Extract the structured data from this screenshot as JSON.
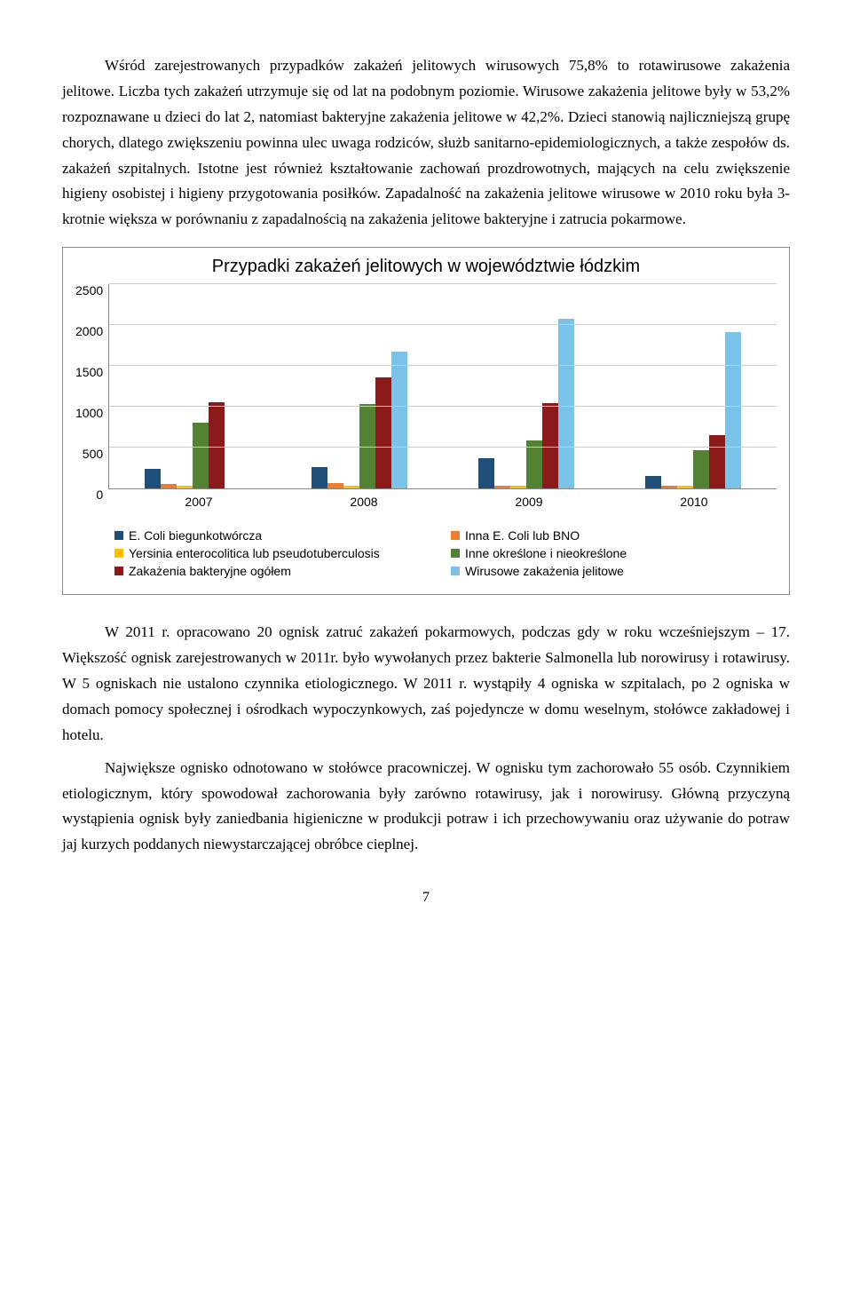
{
  "paragraphs": {
    "p1": "Wśród zarejestrowanych przypadków zakażeń jelitowych wirusowych 75,8% to rotawirusowe zakażenia jelitowe. Liczba tych zakażeń utrzymuje się od lat na podobnym poziomie. Wirusowe zakażenia jelitowe były w 53,2% rozpoznawane u dzieci do lat 2, natomiast bakteryjne zakażenia jelitowe w 42,2%. Dzieci stanowią najliczniejszą grupę chorych, dlatego zwiększeniu powinna ulec uwaga rodziców, służb sanitarno-epidemiologicznych, a także zespołów ds. zakażeń szpitalnych. Istotne jest również kształtowanie zachowań prozdrowotnych, mających na celu zwiększenie higieny osobistej i higieny przygotowania posiłków. Zapadalność na zakażenia jelitowe wirusowe w 2010 roku była 3-krotnie większa w porównaniu z zapadalnością na zakażenia jelitowe bakteryjne i zatrucia pokarmowe.",
    "p2": "W 2011 r. opracowano 20 ognisk zatruć zakażeń pokarmowych, podczas gdy w roku wcześniejszym – 17. Większość ognisk zarejestrowanych w 2011r. było wywołanych przez bakterie Salmonella lub norowirusy i rotawirusy. W 5 ogniskach nie ustalono czynnika etiologicznego. W 2011 r. wystąpiły 4 ogniska w szpitalach, po 2 ogniska w domach pomocy społecznej i ośrodkach wypoczynkowych, zaś pojedyncze w domu weselnym, stołówce zakładowej i hotelu.",
    "p3": "Największe ognisko odnotowano w stołówce pracowniczej. W ognisku tym zachorowało 55 osób. Czynnikiem etiologicznym, który spowodował zachorowania były zarówno rotawirusy, jak i norowirusy. Główną przyczyną wystąpienia ognisk były zaniedbania higieniczne w produkcji potraw i ich przechowywaniu oraz używanie do potraw jaj kurzych poddanych niewystarczającej obróbce cieplnej."
  },
  "chart": {
    "title": "Przypadki zakażeń jelitowych w województwie łódzkim",
    "type": "bar",
    "ylim_max": 2500,
    "ytick_step": 500,
    "y_ticks": [
      "2500",
      "2000",
      "1500",
      "1000",
      "500",
      "0"
    ],
    "categories": [
      "2007",
      "2008",
      "2009",
      "2010"
    ],
    "series": [
      {
        "name": "E. Coli biegunkotwórcza",
        "color": "#1f4e79",
        "values": [
          240,
          260,
          370,
          150
        ]
      },
      {
        "name": "Inna E. Coli lub BNO",
        "color": "#ed7d31",
        "values": [
          60,
          70,
          40,
          40
        ]
      },
      {
        "name": "Yersinia enterocolitica lub pseudotuberculosis",
        "color": "#ffc000",
        "values": [
          30,
          40,
          30,
          30
        ]
      },
      {
        "name": "Inne określone i nieokreślone",
        "color": "#548235",
        "values": [
          810,
          1040,
          590,
          470
        ]
      },
      {
        "name": "Zakażenia bakteryjne ogółem",
        "color": "#8b1a1a",
        "values": [
          1060,
          1360,
          1050,
          650
        ]
      },
      {
        "name": "Wirusowe zakażenia jelitowe",
        "color": "#7bc2e8",
        "values": [
          0,
          1680,
          2080,
          1920
        ]
      }
    ],
    "grid_color": "#cccccc",
    "border_color": "#888888",
    "background": "#ffffff"
  },
  "page_number": "7"
}
